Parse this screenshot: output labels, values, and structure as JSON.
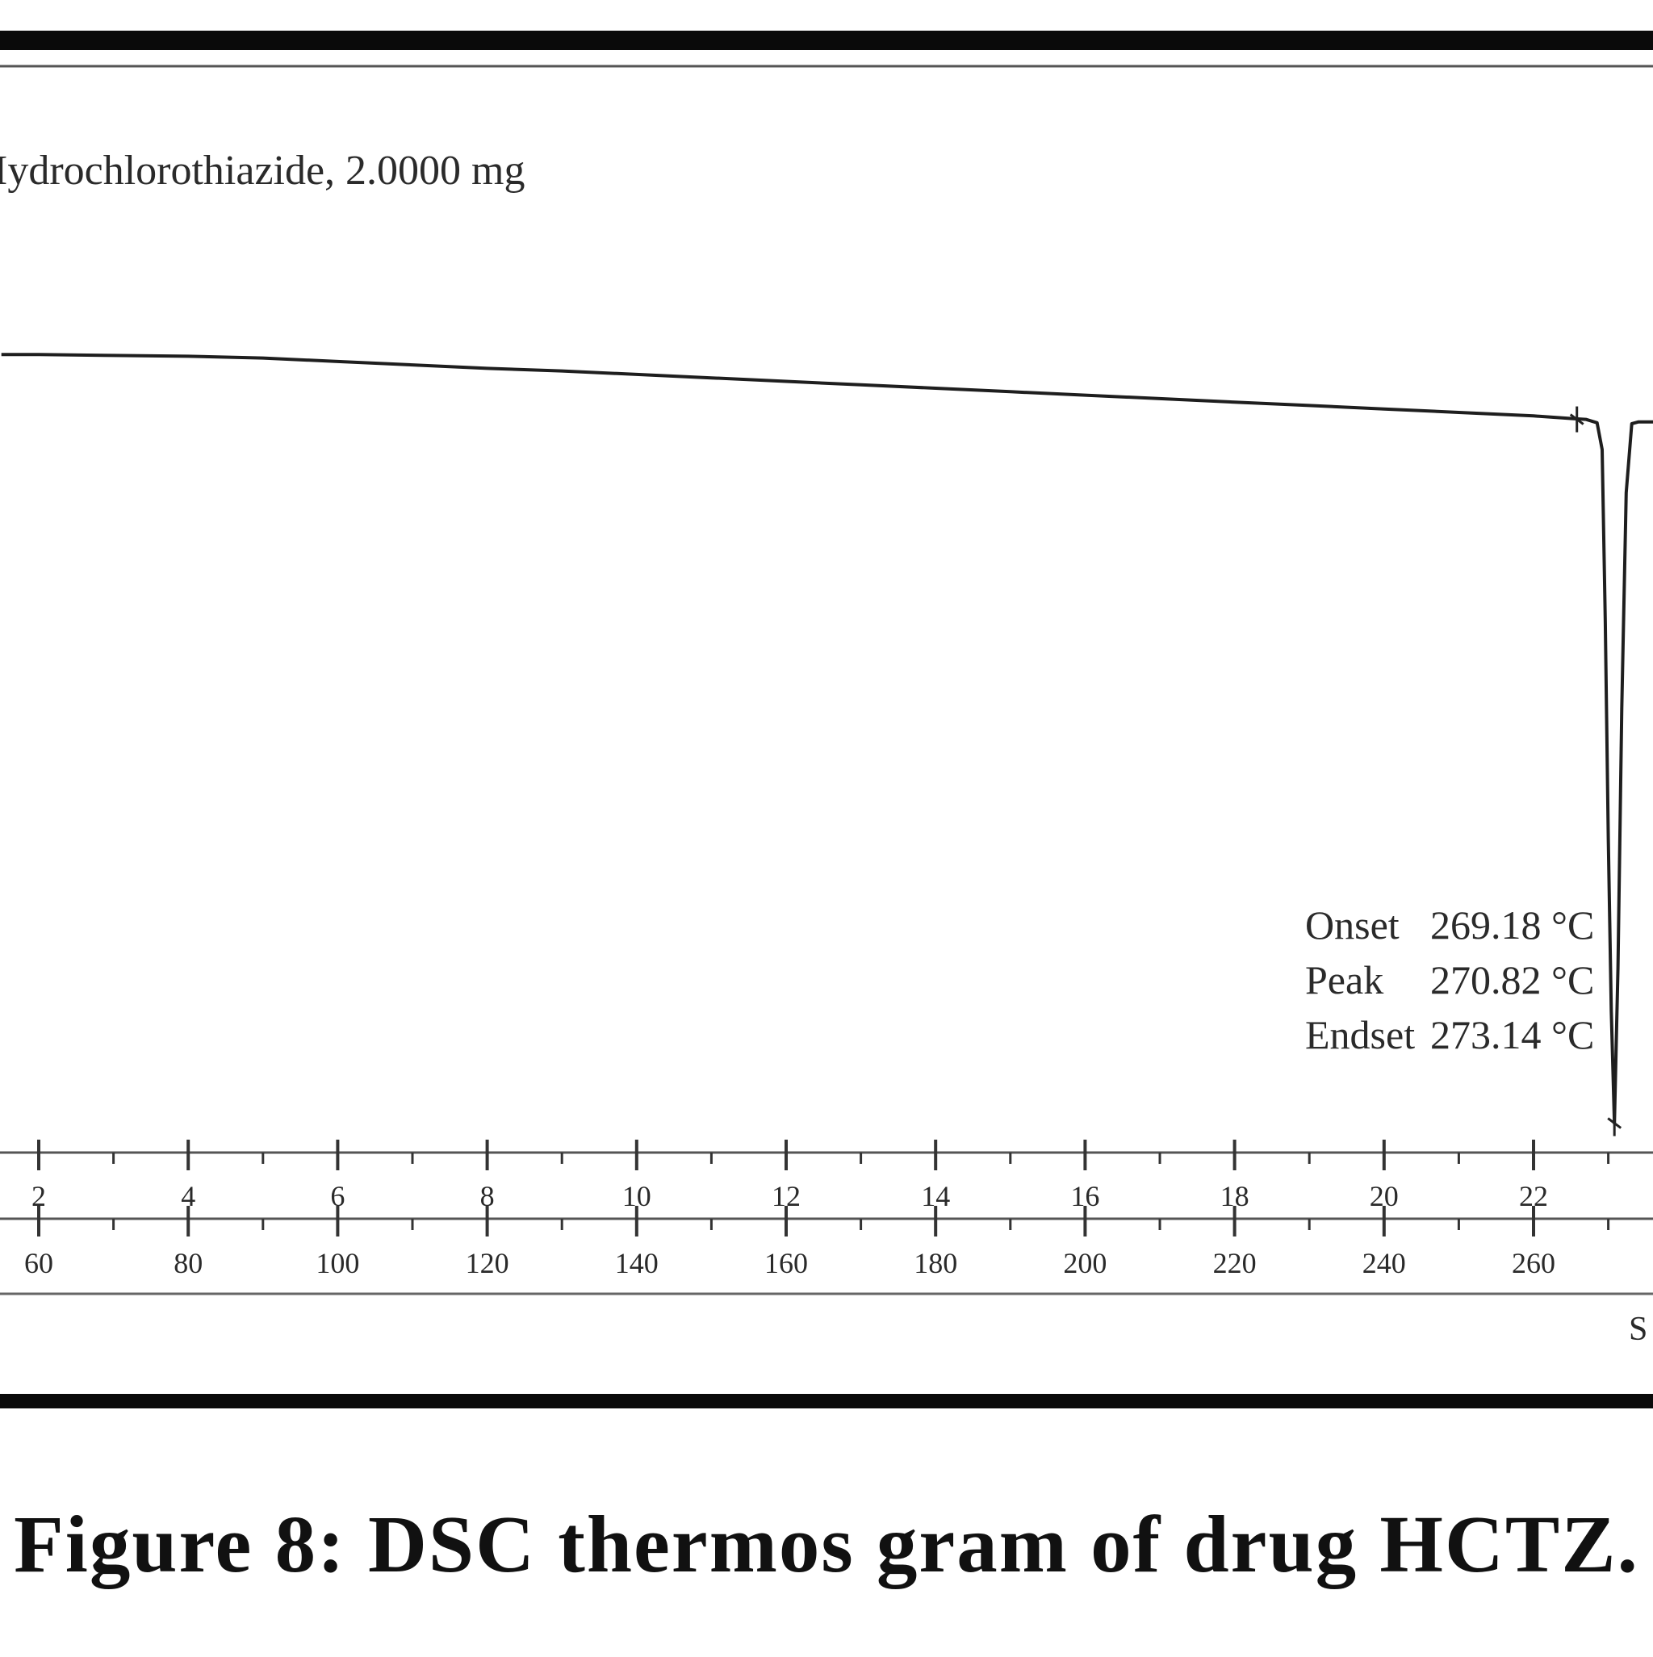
{
  "figure": {
    "caption": "Figure 8: DSC thermos gram of drug HCTZ."
  },
  "chart_data": {
    "type": "line",
    "title": "",
    "sample_label": "Iydrochlorothiazide, 2.0000 mg",
    "xlabel": "",
    "ylabel": "",
    "time_axis": {
      "ticks": [
        2,
        4,
        6,
        8,
        10,
        12,
        14,
        16,
        18,
        20,
        22
      ],
      "tick_labels": [
        "2",
        "4",
        "6",
        "8",
        "10",
        "12",
        "14",
        "16",
        "18",
        "20",
        "22"
      ]
    },
    "temperature_axis": {
      "ticks": [
        60,
        80,
        100,
        120,
        140,
        160,
        180,
        200,
        220,
        240,
        260
      ],
      "tick_labels": [
        "60",
        "80",
        "100",
        "120",
        "140",
        "160",
        "180",
        "200",
        "220",
        "240",
        "260"
      ],
      "xlim": [
        55,
        285
      ]
    },
    "ylim": [
      0,
      100
    ],
    "series": [
      {
        "x": [
          55,
          60,
          70,
          80,
          90,
          100,
          110,
          120,
          130,
          140,
          150,
          160,
          170,
          180,
          190,
          200,
          210,
          220,
          230,
          240,
          250,
          260,
          265,
          267,
          268.5,
          269.18,
          269.6,
          270.0,
          270.4,
          270.82,
          271.3,
          271.8,
          272.4,
          273.14,
          274,
          276,
          280,
          285
        ],
        "y": [
          91,
          91,
          90.9,
          90.8,
          90.6,
          90.2,
          89.8,
          89.4,
          89.1,
          88.7,
          88.3,
          87.9,
          87.5,
          87.1,
          86.7,
          86.3,
          85.9,
          85.5,
          85.1,
          84.7,
          84.3,
          83.9,
          83.6,
          83.5,
          83.1,
          80,
          60,
          35,
          15,
          2,
          20,
          50,
          75,
          83,
          83.2,
          83.2,
          83.2,
          83.2
        ]
      }
    ],
    "markers": [
      {
        "x": 265.8,
        "y": 83.5
      },
      {
        "x": 270.82,
        "y": 2
      }
    ],
    "annotations": [
      {
        "label": "Onset",
        "value": "269.18 °C"
      },
      {
        "label": "Peak",
        "value": "270.82 °C"
      },
      {
        "label": "Endset",
        "value": "273.14 °C"
      }
    ],
    "footer_fragment": "S",
    "grid": false,
    "legend": "none"
  }
}
